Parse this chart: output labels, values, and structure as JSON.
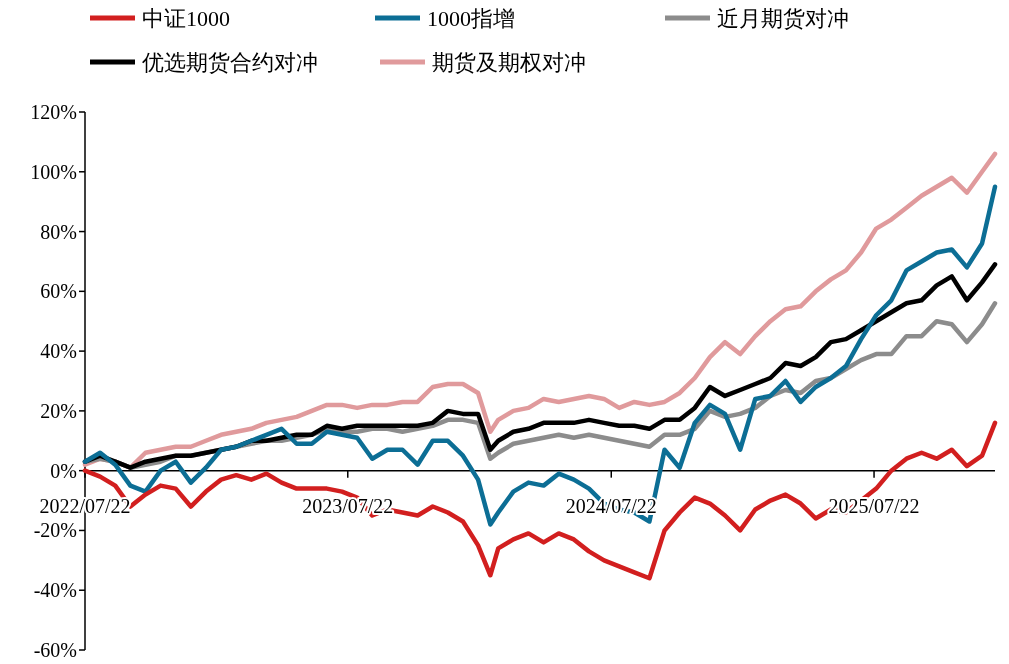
{
  "chart_data": {
    "type": "line",
    "x": [
      "2022-07-22",
      "2022-08-12",
      "2022-09-02",
      "2022-09-23",
      "2022-10-14",
      "2022-11-04",
      "2022-11-25",
      "2022-12-16",
      "2023-01-06",
      "2023-01-27",
      "2023-02-17",
      "2023-03-10",
      "2023-03-31",
      "2023-04-21",
      "2023-05-12",
      "2023-06-02",
      "2023-06-23",
      "2023-07-14",
      "2023-08-04",
      "2023-08-25",
      "2023-09-15",
      "2023-10-06",
      "2023-10-27",
      "2023-11-17",
      "2023-12-08",
      "2023-12-29",
      "2024-01-19",
      "2024-02-05",
      "2024-02-16",
      "2024-03-08",
      "2024-03-29",
      "2024-04-19",
      "2024-05-10",
      "2024-05-31",
      "2024-06-21",
      "2024-07-12",
      "2024-08-02",
      "2024-08-23",
      "2024-09-13",
      "2024-10-04",
      "2024-10-25",
      "2024-11-15",
      "2024-12-06",
      "2024-12-27",
      "2025-01-17",
      "2025-02-07",
      "2025-02-28",
      "2025-03-21",
      "2025-04-11",
      "2025-05-02",
      "2025-05-23",
      "2025-06-13",
      "2025-07-04",
      "2025-07-25",
      "2025-08-15",
      "2025-09-05",
      "2025-09-26",
      "2025-10-17",
      "2025-11-07",
      "2025-11-28",
      "2025-12-19",
      "2026-01-06"
    ],
    "series": [
      {
        "name": "中证1000",
        "color": "#d21f1f",
        "values": [
          0,
          -2,
          -5,
          -12,
          -8,
          -5,
          -6,
          -12,
          -7,
          -3,
          -1.5,
          -3,
          -1,
          -4,
          -6,
          -6,
          -6,
          -7,
          -9,
          -15,
          -13,
          -14,
          -15,
          -12,
          -14,
          -17,
          -25,
          -35,
          -26,
          -23,
          -21,
          -24,
          -21,
          -23,
          -27,
          -30,
          -32,
          -34,
          -36,
          -20,
          -14,
          -9,
          -11,
          -15,
          -20,
          -13,
          -10,
          -8,
          -11,
          -16,
          -13,
          -14,
          -10,
          -6,
          0,
          4,
          6,
          4,
          7,
          1.5,
          5,
          16
        ]
      },
      {
        "name": "1000指增",
        "color": "#0c6e95",
        "values": [
          3,
          6,
          2,
          -5,
          -7,
          0,
          3,
          -4,
          1,
          7,
          8,
          10,
          12,
          14,
          9,
          9,
          13,
          12,
          11,
          4,
          7,
          7,
          2,
          10,
          10,
          5,
          -3,
          -18,
          -14,
          -7,
          -4,
          -5,
          -1,
          -3,
          -6,
          -11,
          -13,
          -14,
          -17,
          7,
          1,
          16,
          22,
          19,
          7,
          24,
          25,
          30,
          23,
          28,
          31,
          35,
          44,
          52,
          57,
          67,
          70,
          73,
          74,
          68,
          76,
          95
        ]
      },
      {
        "name": "近月期货对冲",
        "color": "#8c8c8c",
        "values": [
          3,
          4,
          3,
          1,
          2,
          3,
          5,
          5,
          6,
          7,
          8,
          9,
          10,
          10,
          11,
          12,
          14,
          13,
          13,
          14,
          14,
          13,
          14,
          15,
          17,
          17,
          16,
          4,
          6,
          9,
          10,
          11,
          12,
          11,
          12,
          11,
          10,
          9,
          8,
          12,
          12,
          14,
          20,
          18,
          19,
          21,
          25,
          27,
          26,
          30,
          31,
          34,
          37,
          39,
          39,
          45,
          45,
          50,
          49,
          43,
          49,
          56
        ]
      },
      {
        "name": "优选期货合约对冲",
        "color": "#000000",
        "values": [
          3,
          5,
          3,
          1,
          3,
          4,
          5,
          5,
          6,
          7,
          8,
          10,
          10,
          11,
          12,
          12,
          15,
          14,
          15,
          15,
          15,
          15,
          15,
          16,
          20,
          19,
          19,
          7,
          10,
          13,
          14,
          16,
          16,
          16,
          17,
          16,
          15,
          15,
          14,
          17,
          17,
          21,
          28,
          25,
          27,
          29,
          31,
          36,
          35,
          38,
          43,
          44,
          47,
          50,
          53,
          56,
          57,
          62,
          65,
          57,
          63,
          69
        ]
      },
      {
        "name": "期货及期权对冲",
        "color": "#e09a9c",
        "values": [
          2,
          4,
          3,
          1,
          6,
          7,
          8,
          8,
          10,
          12,
          13,
          14,
          16,
          17,
          18,
          20,
          22,
          22,
          21,
          22,
          22,
          23,
          23,
          28,
          29,
          29,
          26,
          13,
          17,
          20,
          21,
          24,
          23,
          24,
          25,
          24,
          21,
          23,
          22,
          23,
          26,
          31,
          38,
          43,
          39,
          45,
          50,
          54,
          55,
          60,
          64,
          67,
          73,
          81,
          84,
          88,
          92,
          95,
          98,
          93,
          100,
          106
        ]
      }
    ],
    "xlim": [
      "2022-07-22",
      "2026-01-06"
    ],
    "xticks": [
      {
        "value": "2022-07-22",
        "label": "2022/07/22"
      },
      {
        "value": "2023-07-22",
        "label": "2023/07/22"
      },
      {
        "value": "2024-07-22",
        "label": "2024/07/22"
      },
      {
        "value": "2025-07-22",
        "label": "2025/07/22"
      }
    ],
    "ylim": [
      -60,
      120
    ],
    "yticks": [
      {
        "value": -60,
        "label": "-60%"
      },
      {
        "value": -40,
        "label": "-40%"
      },
      {
        "value": -20,
        "label": "-20%"
      },
      {
        "value": 0,
        "label": "0%"
      },
      {
        "value": 20,
        "label": "20%"
      },
      {
        "value": 40,
        "label": "40%"
      },
      {
        "value": 60,
        "label": "60%"
      },
      {
        "value": 80,
        "label": "80%"
      },
      {
        "value": 100,
        "label": "100%"
      },
      {
        "value": 120,
        "label": "120%"
      }
    ],
    "legend": "top",
    "grid": false,
    "marker": "none",
    "line_style": "solid"
  }
}
